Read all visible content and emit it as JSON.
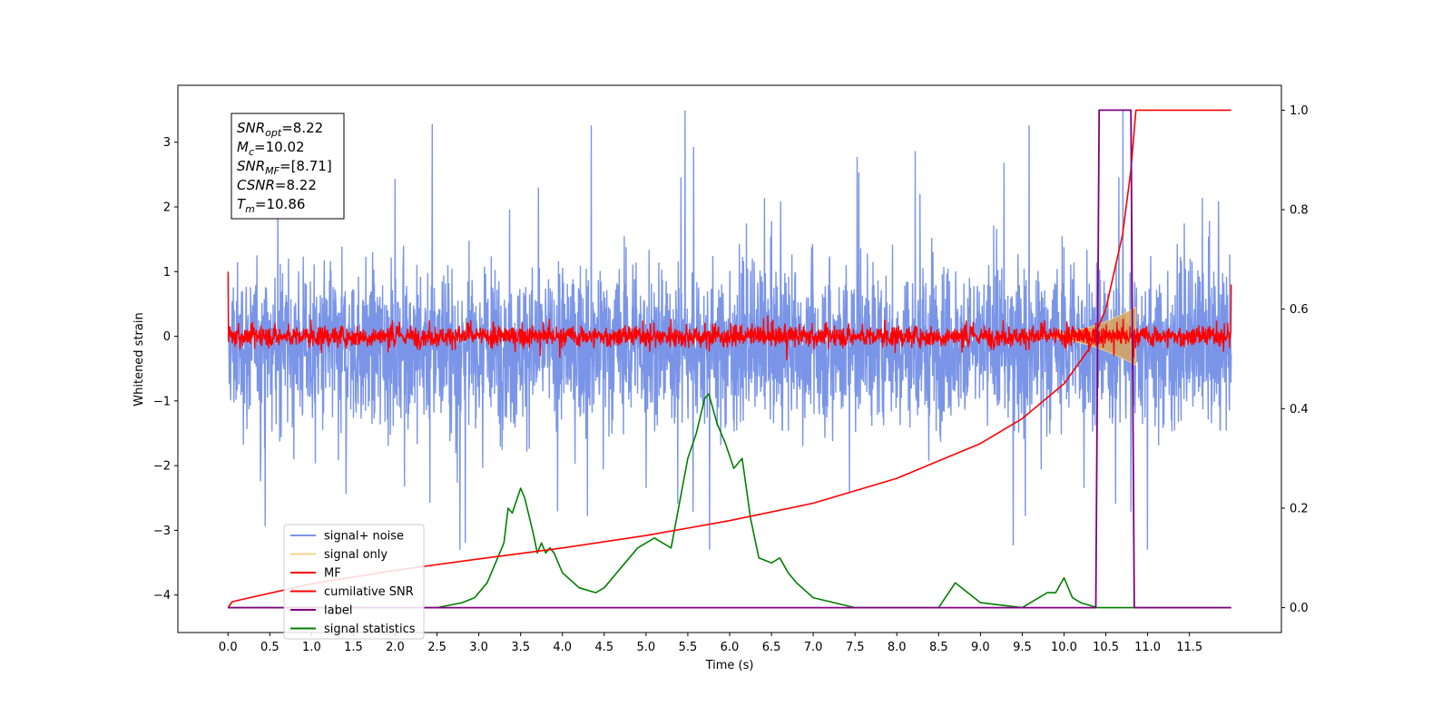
{
  "chart_data": {
    "type": "line",
    "xlabel": "Time (s)",
    "ylabel": "Whitened strain",
    "xlim": [
      -0.6,
      12.6
    ],
    "ylim_left": [
      -4.58,
      3.88
    ],
    "ylim_right": [
      -0.05,
      1.05
    ],
    "x_ticks": [
      "0.0",
      "0.5",
      "1.0",
      "1.5",
      "2.0",
      "2.5",
      "3.0",
      "3.5",
      "4.0",
      "4.5",
      "5.0",
      "5.5",
      "6.0",
      "6.5",
      "7.0",
      "7.5",
      "8.0",
      "8.5",
      "9.0",
      "9.5",
      "10.0",
      "10.5",
      "11.0",
      "11.5"
    ],
    "y_left_ticks": [
      "3",
      "2",
      "1",
      "0",
      "−1",
      "−2",
      "−3",
      "−4"
    ],
    "y_right_ticks": [
      "1.0",
      "0.8",
      "0.6",
      "0.4",
      "0.2",
      "0.0"
    ],
    "grid": false,
    "legend_position": "lower-left",
    "legend": [
      {
        "label": "signal+ noise",
        "color": "#7a95e8"
      },
      {
        "label": "signal only",
        "color": "#f5d58a"
      },
      {
        "label": "MF",
        "color": "#ff0000"
      },
      {
        "label": "cumilative SNR",
        "color": "#ff0000"
      },
      {
        "label": "label",
        "color": "#800080"
      },
      {
        "label": "signal statistics",
        "color": "#008000"
      }
    ],
    "annotation": [
      {
        "base": "SNR",
        "sub": "opt",
        "value": "=8.22"
      },
      {
        "base": "M",
        "sub": "c",
        "value": "=10.02"
      },
      {
        "base": "SNR",
        "sub": "MF",
        "value": "=[8.71]"
      },
      {
        "base": "CSNR",
        "sub": "",
        "value": "=8.22"
      },
      {
        "base": "T",
        "sub": "m",
        "value": "=10.86"
      }
    ],
    "series": [
      {
        "name": "signal+ noise",
        "axis": "left",
        "x_range": [
          0.0,
          12.0
        ],
        "envelope": [
          -1.3,
          1.8
        ],
        "peaks": [
          -3.3,
          3.5
        ],
        "center": -0.15
      },
      {
        "name": "signal only",
        "axis": "left",
        "chirp_start": 9.5,
        "chirp_end": 10.86,
        "max_amplitude": 0.45
      },
      {
        "name": "MF",
        "axis": "left",
        "x_range": [
          0.0,
          12.0
        ],
        "amplitude": 0.25,
        "edges": [
          1.0,
          0.8
        ]
      },
      {
        "name": "cumilative SNR",
        "axis": "right",
        "x": [
          0.0,
          0.05,
          1.0,
          2.0,
          3.0,
          4.0,
          5.0,
          6.0,
          7.0,
          8.0,
          9.0,
          9.5,
          10.0,
          10.3,
          10.5,
          10.7,
          10.8,
          10.86,
          12.0
        ],
        "y": [
          0.0,
          0.012,
          0.048,
          0.075,
          0.098,
          0.12,
          0.145,
          0.175,
          0.21,
          0.26,
          0.33,
          0.38,
          0.45,
          0.52,
          0.6,
          0.75,
          0.88,
          1.0,
          1.0
        ]
      },
      {
        "name": "label",
        "axis": "right",
        "x": [
          0.0,
          10.38,
          10.42,
          10.8,
          10.84,
          12.0
        ],
        "y": [
          0.0,
          0.0,
          1.0,
          1.0,
          0.0,
          0.0
        ]
      },
      {
        "name": "signal statistics",
        "axis": "right",
        "x": [
          0.0,
          0.5,
          1.0,
          1.5,
          2.0,
          2.5,
          2.8,
          2.95,
          3.05,
          3.1,
          3.25,
          3.3,
          3.35,
          3.4,
          3.5,
          3.55,
          3.65,
          3.7,
          3.75,
          3.8,
          3.85,
          3.9,
          4.0,
          4.2,
          4.4,
          4.5,
          4.6,
          4.7,
          4.9,
          5.0,
          5.1,
          5.3,
          5.5,
          5.6,
          5.7,
          5.75,
          5.8,
          5.85,
          5.95,
          6.05,
          6.15,
          6.25,
          6.35,
          6.5,
          6.6,
          6.7,
          6.8,
          7.0,
          7.5,
          8.0,
          8.5,
          8.7,
          9.0,
          9.5,
          9.8,
          9.9,
          10.0,
          10.1,
          10.2,
          10.4,
          11.0,
          12.0
        ],
        "y": [
          0.0,
          0.0,
          0.0,
          0.0,
          0.0,
          0.0,
          0.01,
          0.02,
          0.04,
          0.05,
          0.11,
          0.13,
          0.2,
          0.19,
          0.24,
          0.22,
          0.15,
          0.11,
          0.13,
          0.11,
          0.12,
          0.11,
          0.07,
          0.04,
          0.03,
          0.04,
          0.06,
          0.08,
          0.12,
          0.13,
          0.14,
          0.12,
          0.3,
          0.35,
          0.42,
          0.43,
          0.4,
          0.37,
          0.33,
          0.28,
          0.3,
          0.18,
          0.1,
          0.09,
          0.1,
          0.07,
          0.05,
          0.02,
          0.0,
          0.0,
          0.0,
          0.05,
          0.01,
          0.0,
          0.03,
          0.03,
          0.06,
          0.02,
          0.01,
          0.0,
          0.0,
          0.0
        ]
      }
    ]
  }
}
